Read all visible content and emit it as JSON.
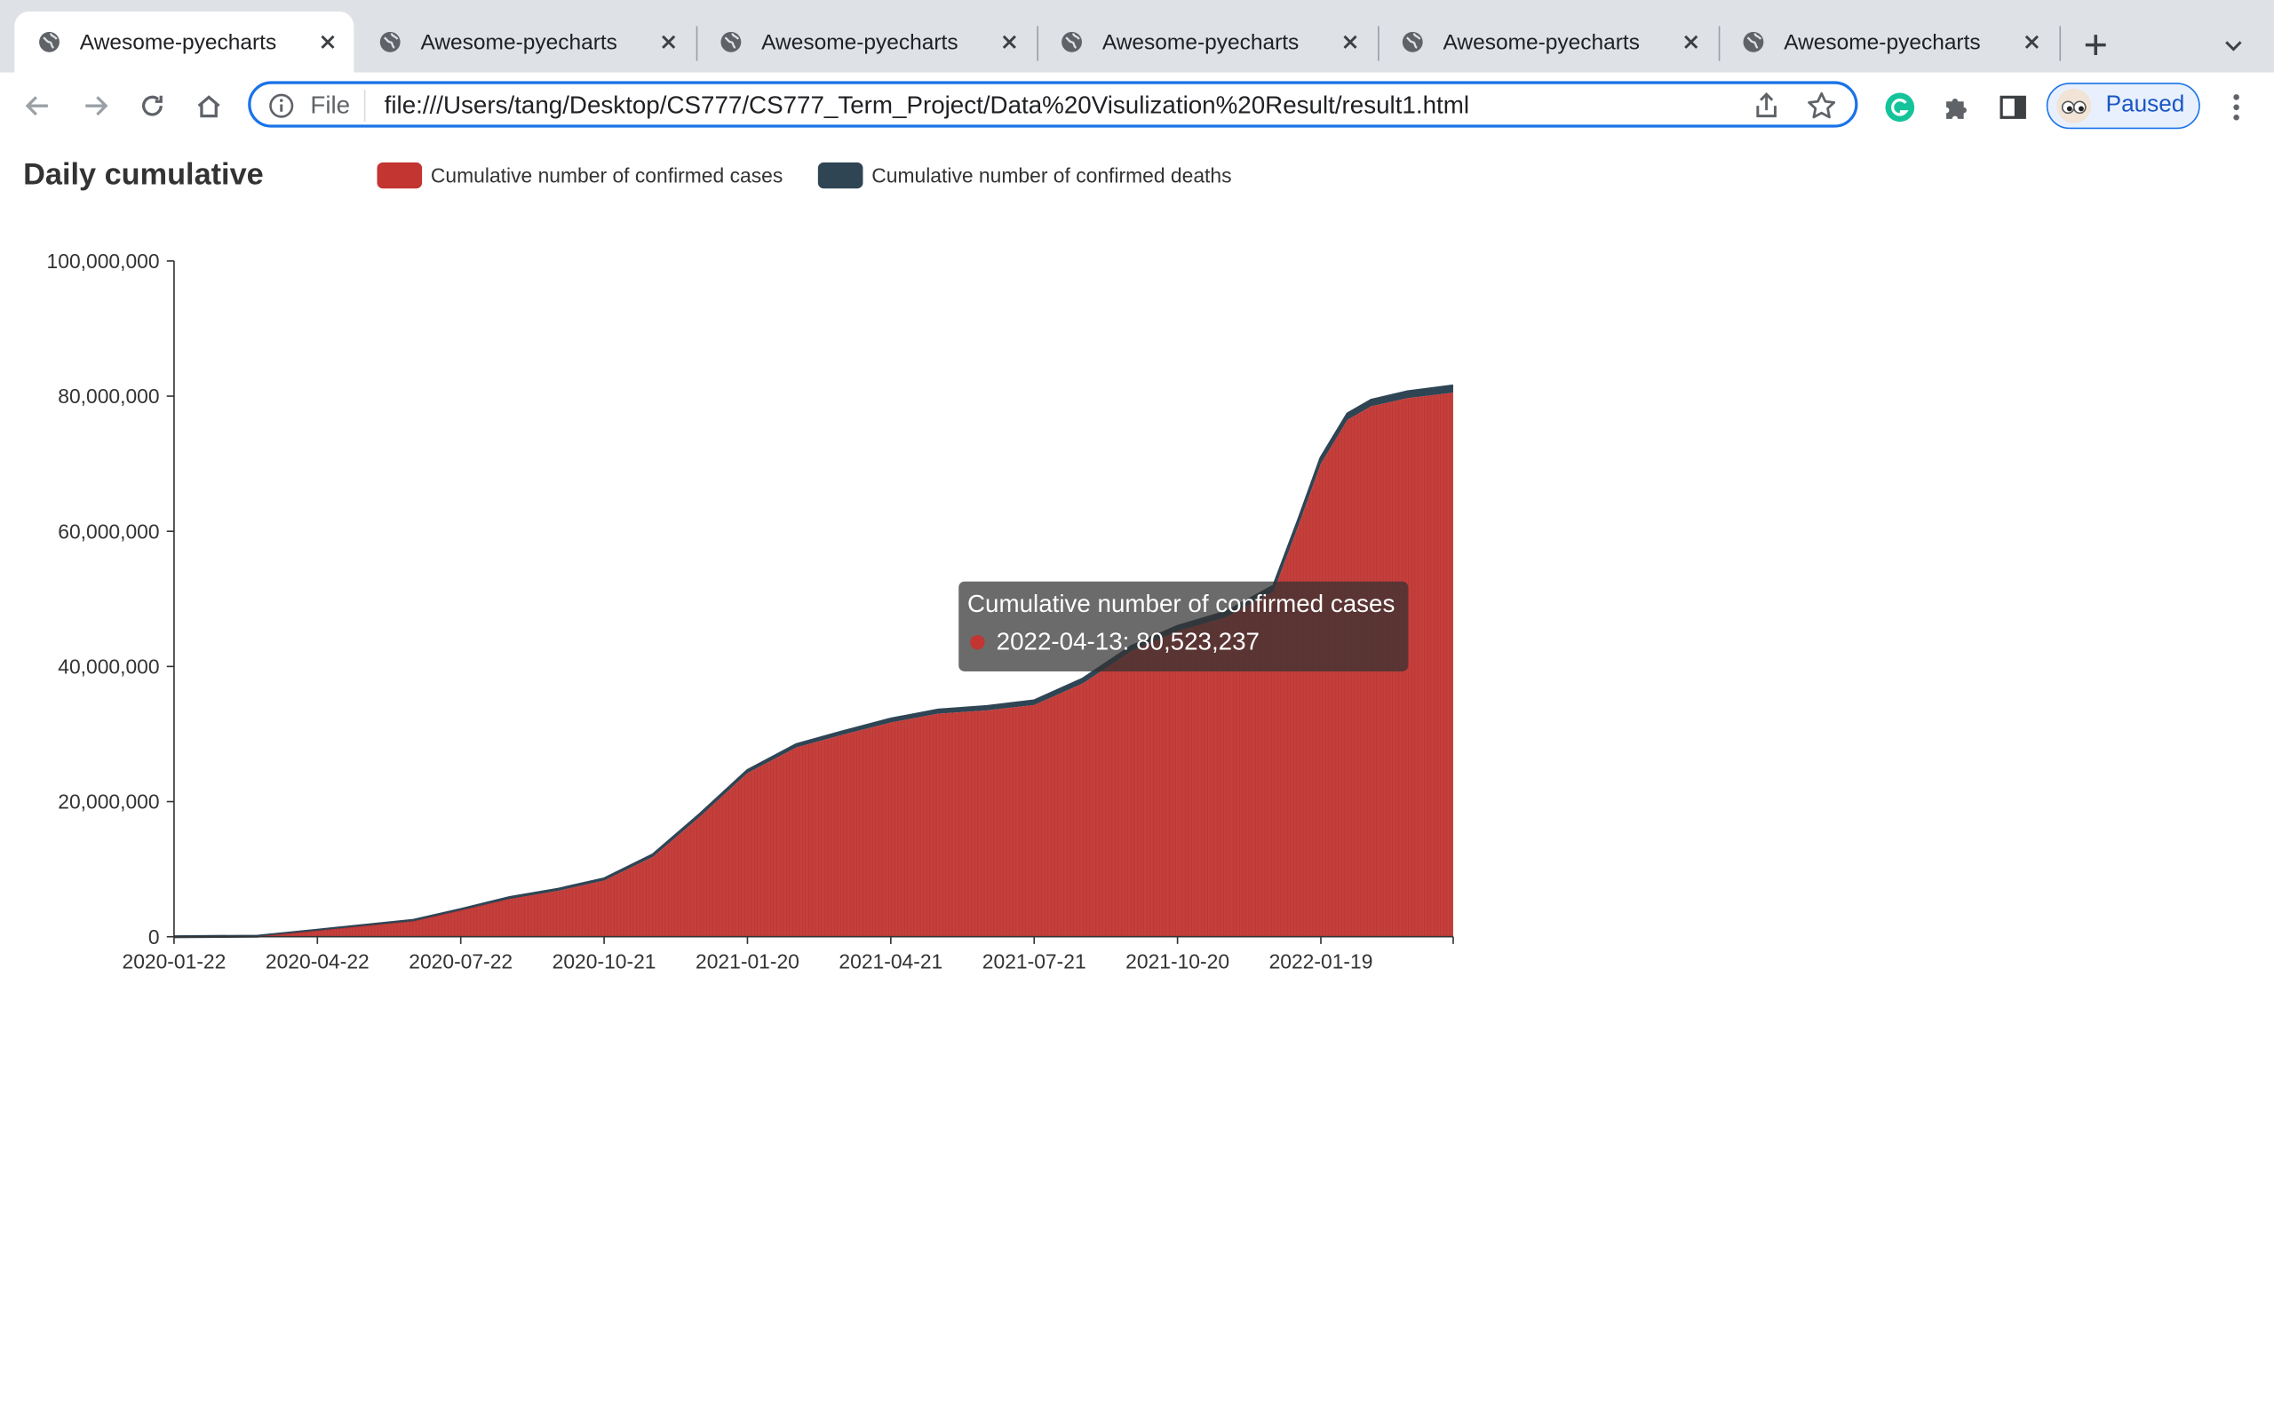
{
  "browser": {
    "tabs": [
      {
        "label": "Awesome-pyecharts",
        "active": true
      },
      {
        "label": "Awesome-pyecharts",
        "active": false
      },
      {
        "label": "Awesome-pyecharts",
        "active": false
      },
      {
        "label": "Awesome-pyecharts",
        "active": false
      },
      {
        "label": "Awesome-pyecharts",
        "active": false
      },
      {
        "label": "Awesome-pyecharts",
        "active": false
      }
    ],
    "omnibox": {
      "scheme_label": "File",
      "url": "file:///Users/tang/Desktop/CS777/CS777_Term_Project/Data%20Visulization%20Result/result1.html"
    },
    "profile_label": "Paused",
    "accent_color": "#1a73e8"
  },
  "chart_data": {
    "type": "area",
    "title": "Daily cumulative",
    "legend": [
      "Cumulative number of confirmed cases",
      "Cumulative number of confirmed deaths"
    ],
    "legend_position": "top",
    "colors": [
      "#c23531",
      "#2f4554"
    ],
    "x_ticks": [
      "2020-01-22",
      "2020-04-22",
      "2020-07-22",
      "2020-10-21",
      "2021-01-20",
      "2021-04-21",
      "2021-07-21",
      "2021-10-20",
      "2022-01-19"
    ],
    "y_ticks": [
      "0",
      "20,000,000",
      "40,000,000",
      "60,000,000",
      "80,000,000",
      "100,000,000"
    ],
    "ylim": [
      0,
      100000000
    ],
    "x_range": [
      "2020-01-22",
      "2022-04-13"
    ],
    "series": [
      {
        "name": "Cumulative number of confirmed cases",
        "points": [
          [
            "2020-01-22",
            0
          ],
          [
            "2020-03-15",
            50000
          ],
          [
            "2020-04-22",
            900000
          ],
          [
            "2020-05-22",
            1600000
          ],
          [
            "2020-06-22",
            2300000
          ],
          [
            "2020-07-22",
            3900000
          ],
          [
            "2020-08-22",
            5600000
          ],
          [
            "2020-09-22",
            6800000
          ],
          [
            "2020-10-21",
            8300000
          ],
          [
            "2020-11-21",
            11800000
          ],
          [
            "2020-12-21",
            17800000
          ],
          [
            "2021-01-20",
            24200000
          ],
          [
            "2021-02-20",
            28000000
          ],
          [
            "2021-03-20",
            29800000
          ],
          [
            "2021-04-21",
            31700000
          ],
          [
            "2021-05-21",
            33000000
          ],
          [
            "2021-06-21",
            33500000
          ],
          [
            "2021-07-21",
            34300000
          ],
          [
            "2021-08-21",
            37500000
          ],
          [
            "2021-09-21",
            42300000
          ],
          [
            "2021-10-20",
            45200000
          ],
          [
            "2021-11-20",
            47300000
          ],
          [
            "2021-12-20",
            51100000
          ],
          [
            "2022-01-05",
            61000000
          ],
          [
            "2022-01-19",
            70000000
          ],
          [
            "2022-02-05",
            76500000
          ],
          [
            "2022-02-20",
            78500000
          ],
          [
            "2022-03-15",
            79700000
          ],
          [
            "2022-04-13",
            80523237
          ]
        ]
      },
      {
        "name": "Cumulative number of confirmed deaths",
        "points": [
          [
            "2020-01-22",
            0
          ],
          [
            "2020-07-22",
            140000
          ],
          [
            "2021-01-20",
            400000
          ],
          [
            "2021-07-21",
            610000
          ],
          [
            "2022-01-19",
            850000
          ],
          [
            "2022-04-13",
            990000
          ]
        ]
      }
    ],
    "tooltip": {
      "title": "Cumulative number of confirmed cases",
      "text": "2022-04-13: 80,523,237"
    }
  }
}
